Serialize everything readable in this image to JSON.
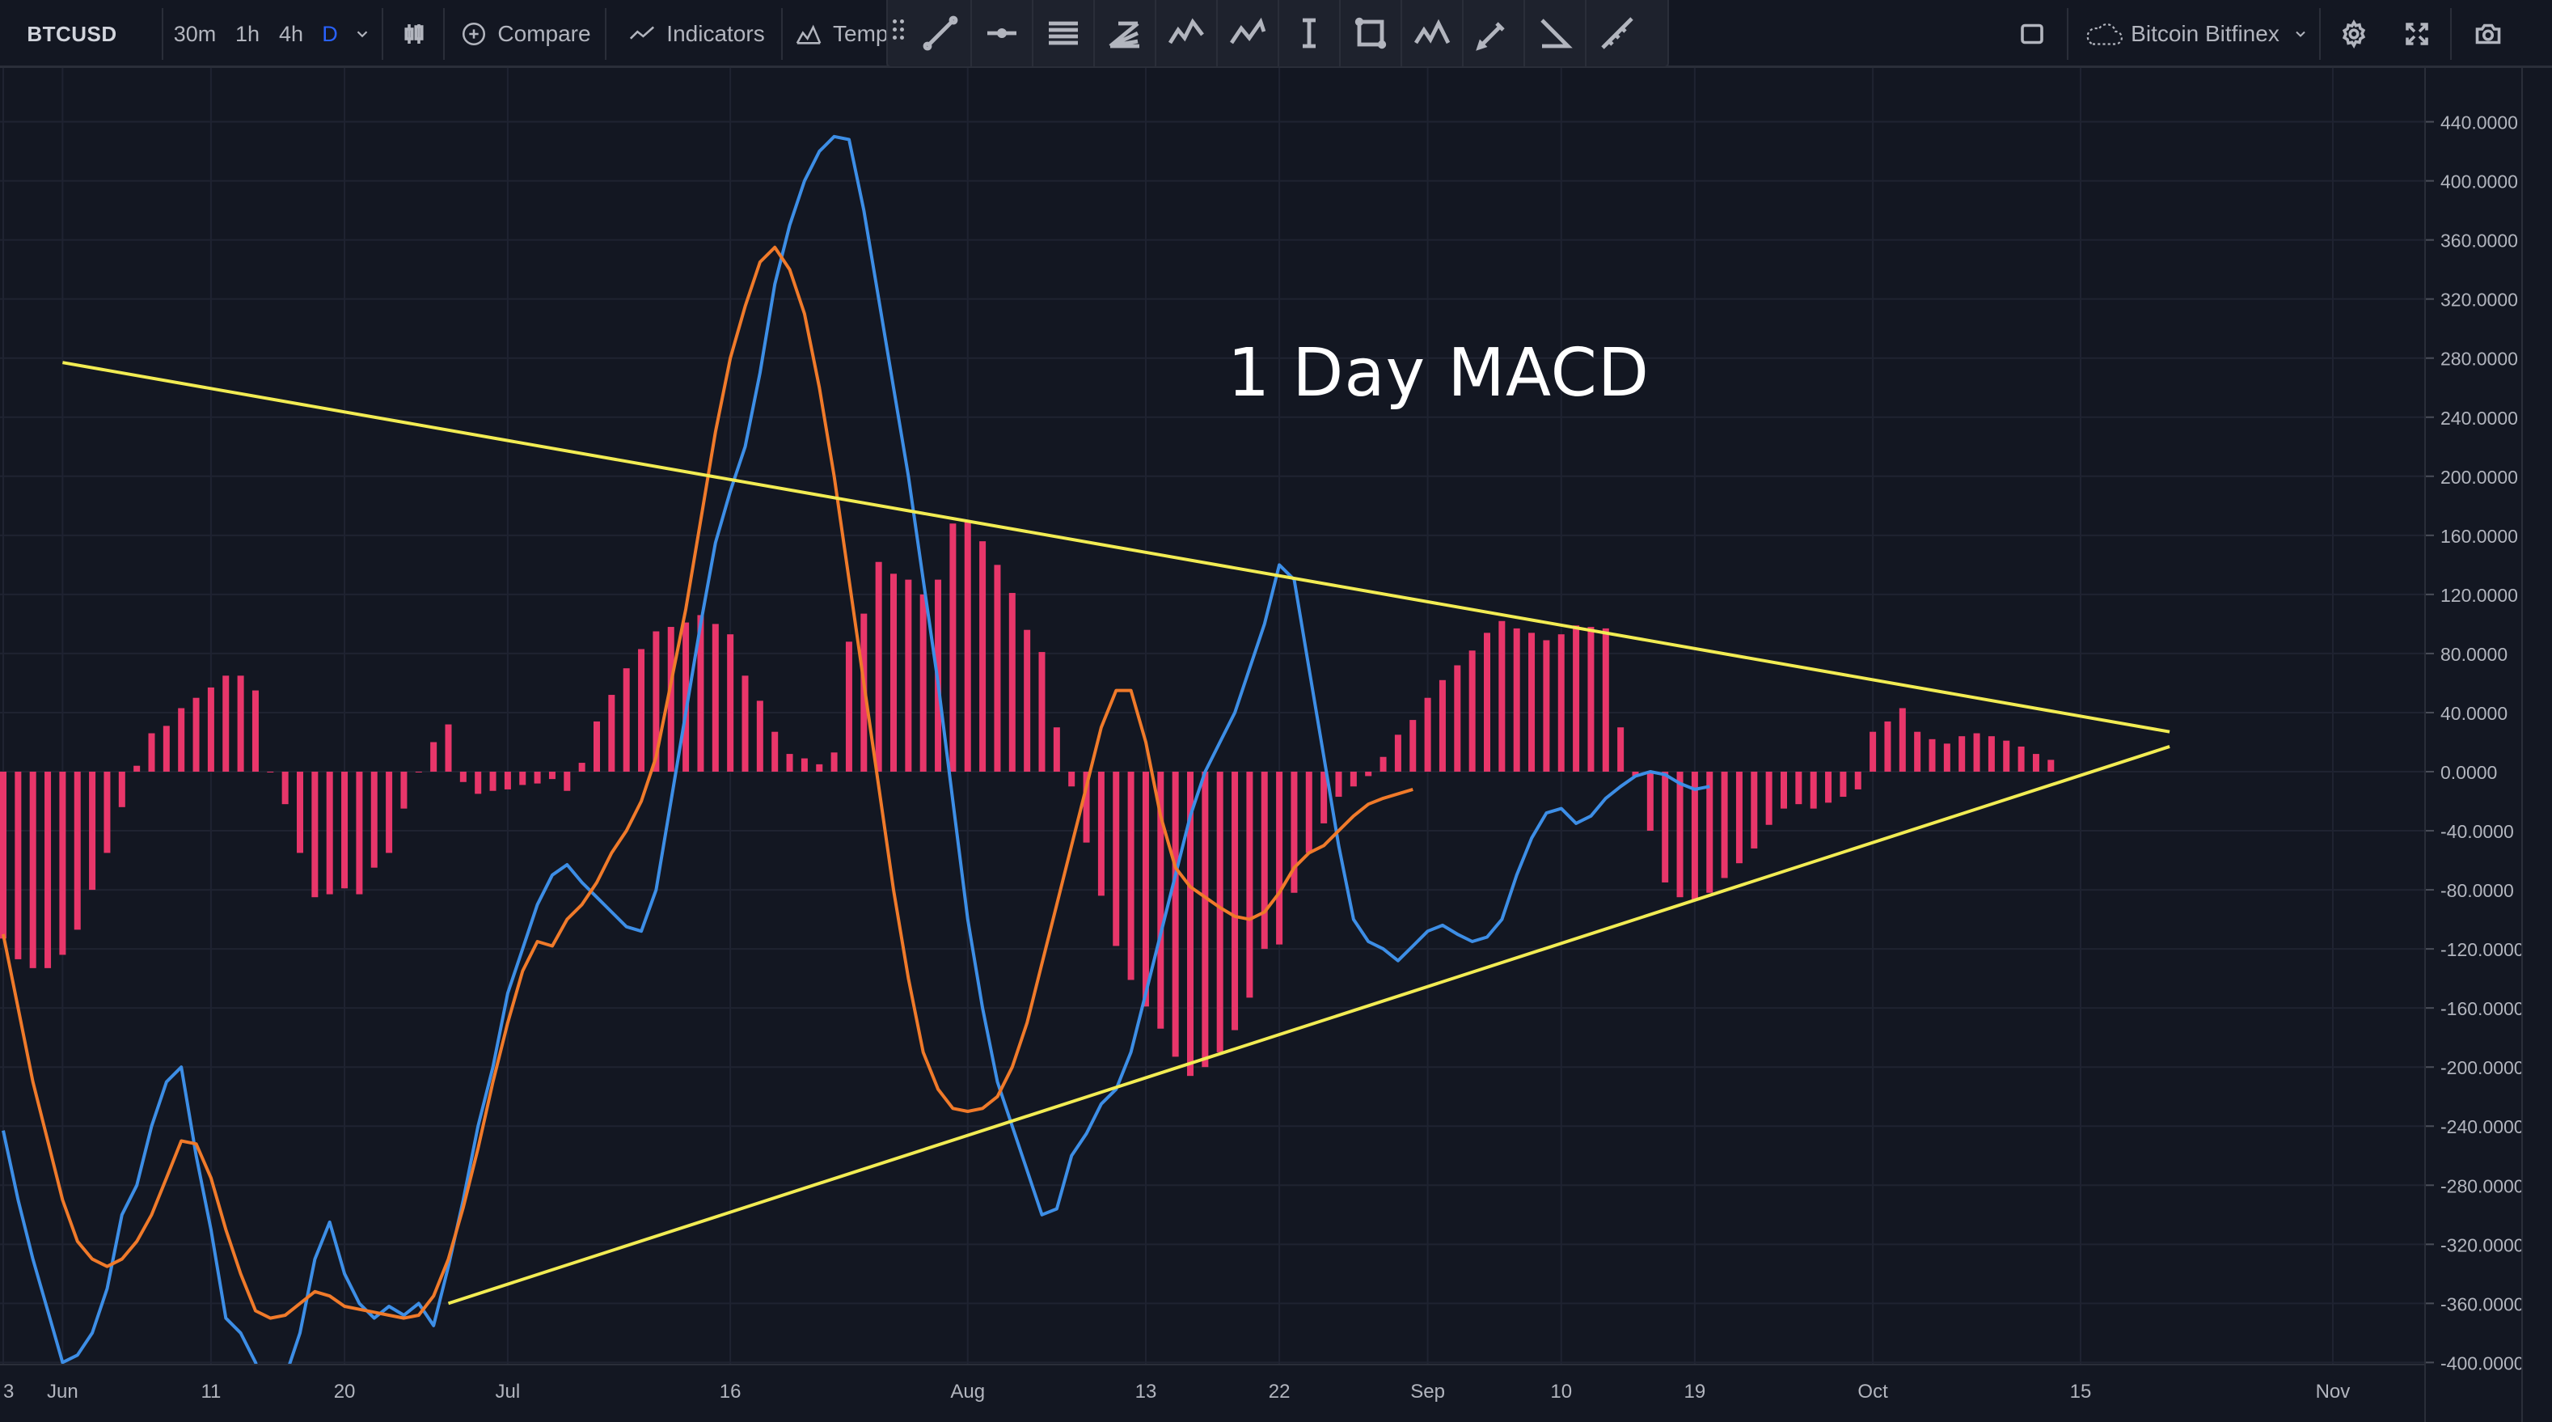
{
  "toolbar": {
    "symbol": "BTCUSD",
    "timeframes": [
      "30m",
      "1h",
      "4h",
      "D"
    ],
    "active_timeframe": "D",
    "compare_label": "Compare",
    "indicators_label": "Indicators",
    "templates_label": "Temp",
    "exchange_label": "Bitcoin Bitfinex"
  },
  "chart": {
    "watermark_text": "1 Day MACD",
    "colors": {
      "background": "#131722",
      "grid": "#1f2331",
      "macd_line": "#3d8ee6",
      "signal_line": "#f07a2a",
      "histogram": "#e8366a",
      "trendline": "#f2ec53",
      "axis_text": "#b2b5be"
    },
    "y_ticks": [
      "440.0000",
      "400.0000",
      "360.0000",
      "320.0000",
      "280.0000",
      "240.0000",
      "200.0000",
      "160.0000",
      "120.0000",
      "80.0000",
      "40.0000",
      "0.0000",
      "-40.0000",
      "-80.0000",
      "-120.0000",
      "-160.0000",
      "-200.0000",
      "-240.0000",
      "-280.0000",
      "-320.0000",
      "-360.0000",
      "-400.0000"
    ],
    "x_ticks": [
      {
        "label": "3",
        "day": 0
      },
      {
        "label": "Jun",
        "day": 4
      },
      {
        "label": "11",
        "day": 14
      },
      {
        "label": "20",
        "day": 23
      },
      {
        "label": "Jul",
        "day": 34
      },
      {
        "label": "16",
        "day": 49
      },
      {
        "label": "Aug",
        "day": 65
      },
      {
        "label": "13",
        "day": 77
      },
      {
        "label": "22",
        "day": 86
      },
      {
        "label": "Sep",
        "day": 96
      },
      {
        "label": "10",
        "day": 105
      },
      {
        "label": "19",
        "day": 114
      },
      {
        "label": "Oct",
        "day": 126
      },
      {
        "label": "15",
        "day": 140
      },
      {
        "label": "Nov",
        "day": 157
      }
    ]
  },
  "chart_data": {
    "type": "line",
    "title": "1 Day MACD",
    "ylim": [
      -400,
      440
    ],
    "x_unit": "day index (0 = 28 May)",
    "histogram": {
      "start_day": 0,
      "values": [
        -113,
        -127,
        -133,
        -133,
        -124,
        -107,
        -80,
        -55,
        -24,
        4,
        26,
        31,
        43,
        50,
        57,
        65,
        65,
        55,
        0,
        -22,
        -55,
        -85,
        -83,
        -79,
        -83,
        -65,
        -55,
        -25,
        0,
        20,
        32,
        -7,
        -15,
        -13,
        -12,
        -9,
        -8,
        -5,
        -13,
        6,
        34,
        52,
        70,
        83,
        95,
        98,
        101,
        106,
        100,
        93,
        65,
        48,
        27,
        12,
        9,
        5,
        13,
        88,
        107,
        142,
        134,
        130,
        120,
        130,
        168,
        170,
        156,
        140,
        121,
        96,
        81,
        30,
        -10,
        -48,
        -84,
        -118,
        -141,
        -159,
        -174,
        -193,
        -206,
        -200,
        -190,
        -175,
        -153,
        -120,
        -117,
        -82,
        -55,
        -35,
        -17,
        -10,
        -3,
        10,
        25,
        35,
        50,
        62,
        72,
        82,
        94,
        102,
        97,
        94,
        89,
        93,
        99,
        98,
        97,
        30,
        -3,
        -40,
        -75,
        -85,
        -87,
        -82,
        -72,
        -62,
        -52,
        -36,
        -25,
        -22,
        -25,
        -21,
        -17,
        -12,
        27,
        34,
        43,
        27,
        22,
        19,
        24,
        26,
        24,
        21,
        17,
        12,
        8
      ]
    },
    "series": [
      {
        "name": "MACD",
        "points": [
          [
            0,
            -243
          ],
          [
            1,
            -290
          ],
          [
            2,
            -330
          ],
          [
            3,
            -365
          ],
          [
            4,
            -400
          ],
          [
            5,
            -395
          ],
          [
            6,
            -380
          ],
          [
            7,
            -350
          ],
          [
            8,
            -300
          ],
          [
            9,
            -280
          ],
          [
            10,
            -240
          ],
          [
            11,
            -210
          ],
          [
            12,
            -200
          ],
          [
            13,
            -260
          ],
          [
            14,
            -310
          ],
          [
            15,
            -370
          ],
          [
            16,
            -380
          ],
          [
            17,
            -400
          ],
          [
            18,
            -430
          ],
          [
            19,
            -410
          ],
          [
            20,
            -380
          ],
          [
            21,
            -330
          ],
          [
            22,
            -305
          ],
          [
            23,
            -340
          ],
          [
            24,
            -360
          ],
          [
            25,
            -370
          ],
          [
            26,
            -362
          ],
          [
            27,
            -368
          ],
          [
            28,
            -360
          ],
          [
            29,
            -375
          ],
          [
            30,
            -335
          ],
          [
            31,
            -290
          ],
          [
            32,
            -240
          ],
          [
            33,
            -200
          ],
          [
            34,
            -150
          ],
          [
            35,
            -120
          ],
          [
            36,
            -90
          ],
          [
            37,
            -70
          ],
          [
            38,
            -63
          ],
          [
            39,
            -75
          ],
          [
            40,
            -85
          ],
          [
            41,
            -95
          ],
          [
            42,
            -105
          ],
          [
            43,
            -108
          ],
          [
            44,
            -80
          ],
          [
            45,
            -20
          ],
          [
            46,
            40
          ],
          [
            47,
            100
          ],
          [
            48,
            155
          ],
          [
            49,
            190
          ],
          [
            50,
            220
          ],
          [
            51,
            270
          ],
          [
            52,
            330
          ],
          [
            53,
            370
          ],
          [
            54,
            400
          ],
          [
            55,
            420
          ],
          [
            56,
            430
          ],
          [
            57,
            428
          ],
          [
            58,
            380
          ],
          [
            59,
            320
          ],
          [
            60,
            260
          ],
          [
            61,
            200
          ],
          [
            62,
            130
          ],
          [
            63,
            60
          ],
          [
            64,
            -20
          ],
          [
            65,
            -100
          ],
          [
            66,
            -160
          ],
          [
            67,
            -210
          ],
          [
            68,
            -240
          ],
          [
            69,
            -270
          ],
          [
            70,
            -300
          ],
          [
            71,
            -296
          ],
          [
            72,
            -260
          ],
          [
            73,
            -245
          ],
          [
            74,
            -225
          ],
          [
            75,
            -215
          ],
          [
            76,
            -190
          ],
          [
            77,
            -150
          ],
          [
            78,
            -110
          ],
          [
            79,
            -70
          ],
          [
            80,
            -30
          ],
          [
            81,
            0
          ],
          [
            82,
            20
          ],
          [
            83,
            40
          ],
          [
            84,
            70
          ],
          [
            85,
            100
          ],
          [
            86,
            140
          ],
          [
            87,
            130
          ],
          [
            88,
            70
          ],
          [
            89,
            10
          ],
          [
            90,
            -50
          ],
          [
            91,
            -100
          ],
          [
            92,
            -115
          ],
          [
            93,
            -120
          ],
          [
            94,
            -128
          ],
          [
            95,
            -118
          ],
          [
            96,
            -108
          ],
          [
            97,
            -104
          ],
          [
            98,
            -110
          ],
          [
            99,
            -115
          ],
          [
            100,
            -112
          ],
          [
            101,
            -100
          ],
          [
            102,
            -70
          ],
          [
            103,
            -45
          ],
          [
            104,
            -28
          ],
          [
            105,
            -25
          ],
          [
            106,
            -35
          ],
          [
            107,
            -30
          ],
          [
            108,
            -18
          ],
          [
            109,
            -10
          ],
          [
            110,
            -3
          ],
          [
            111,
            0
          ],
          [
            112,
            -2
          ],
          [
            113,
            -8
          ],
          [
            114,
            -12
          ],
          [
            115,
            -10
          ]
        ],
        "start_day": 0
      },
      {
        "name": "Signal",
        "points": [
          [
            0,
            -110
          ],
          [
            1,
            -160
          ],
          [
            2,
            -210
          ],
          [
            3,
            -250
          ],
          [
            4,
            -290
          ],
          [
            5,
            -318
          ],
          [
            6,
            -330
          ],
          [
            7,
            -335
          ],
          [
            8,
            -330
          ],
          [
            9,
            -318
          ],
          [
            10,
            -300
          ],
          [
            11,
            -275
          ],
          [
            12,
            -250
          ],
          [
            13,
            -252
          ],
          [
            14,
            -275
          ],
          [
            15,
            -310
          ],
          [
            16,
            -340
          ],
          [
            17,
            -365
          ],
          [
            18,
            -370
          ],
          [
            19,
            -368
          ],
          [
            20,
            -360
          ],
          [
            21,
            -352
          ],
          [
            22,
            -355
          ],
          [
            23,
            -362
          ],
          [
            24,
            -364
          ],
          [
            25,
            -366
          ],
          [
            26,
            -368
          ],
          [
            27,
            -370
          ],
          [
            28,
            -368
          ],
          [
            29,
            -355
          ],
          [
            30,
            -330
          ],
          [
            31,
            -295
          ],
          [
            32,
            -255
          ],
          [
            33,
            -210
          ],
          [
            34,
            -170
          ],
          [
            35,
            -135
          ],
          [
            36,
            -115
          ],
          [
            37,
            -118
          ],
          [
            38,
            -100
          ],
          [
            39,
            -90
          ],
          [
            40,
            -75
          ],
          [
            41,
            -55
          ],
          [
            42,
            -40
          ],
          [
            43,
            -20
          ],
          [
            44,
            10
          ],
          [
            45,
            60
          ],
          [
            46,
            110
          ],
          [
            47,
            170
          ],
          [
            48,
            230
          ],
          [
            49,
            280
          ],
          [
            50,
            315
          ],
          [
            51,
            345
          ],
          [
            52,
            355
          ],
          [
            53,
            340
          ],
          [
            54,
            310
          ],
          [
            55,
            260
          ],
          [
            56,
            200
          ],
          [
            57,
            130
          ],
          [
            58,
            60
          ],
          [
            59,
            -10
          ],
          [
            60,
            -80
          ],
          [
            61,
            -140
          ],
          [
            62,
            -190
          ],
          [
            63,
            -215
          ],
          [
            64,
            -228
          ],
          [
            65,
            -230
          ],
          [
            66,
            -228
          ],
          [
            67,
            -220
          ],
          [
            68,
            -200
          ],
          [
            69,
            -170
          ],
          [
            70,
            -130
          ],
          [
            71,
            -90
          ],
          [
            72,
            -50
          ],
          [
            73,
            -10
          ],
          [
            74,
            30
          ],
          [
            75,
            55
          ],
          [
            76,
            55
          ],
          [
            77,
            20
          ],
          [
            78,
            -30
          ],
          [
            79,
            -65
          ],
          [
            80,
            -78
          ],
          [
            81,
            -85
          ],
          [
            82,
            -92
          ],
          [
            83,
            -98
          ],
          [
            84,
            -100
          ],
          [
            85,
            -95
          ],
          [
            86,
            -82
          ],
          [
            87,
            -65
          ],
          [
            88,
            -55
          ],
          [
            89,
            -50
          ],
          [
            90,
            -40
          ],
          [
            91,
            -30
          ],
          [
            92,
            -22
          ],
          [
            93,
            -18
          ],
          [
            94,
            -15
          ],
          [
            95,
            -12
          ]
        ],
        "start_day": 0
      }
    ],
    "trendlines": [
      {
        "name": "upper",
        "from": [
          4,
          277
        ],
        "to": [
          146,
          27
        ]
      },
      {
        "name": "lower",
        "from": [
          30,
          -360
        ],
        "to": [
          146,
          17
        ]
      }
    ]
  }
}
